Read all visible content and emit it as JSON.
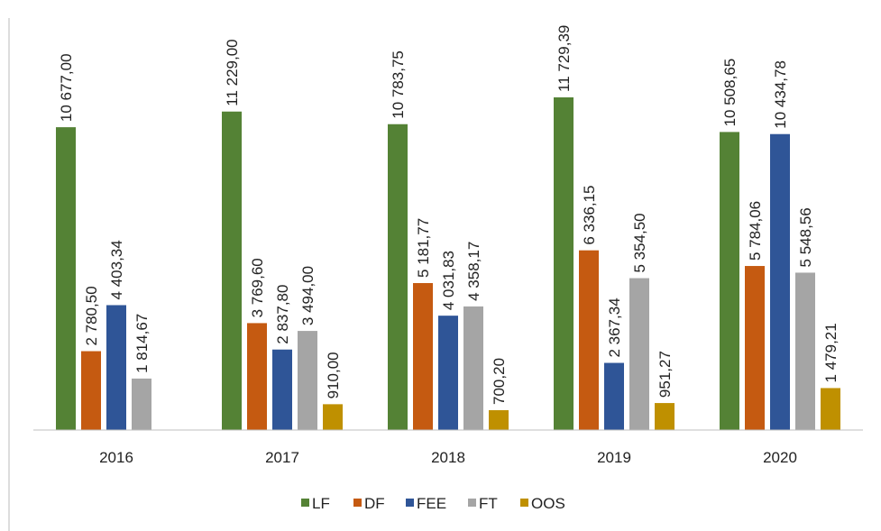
{
  "chart_data": {
    "type": "bar",
    "categories": [
      "2016",
      "2017",
      "2018",
      "2019",
      "2020"
    ],
    "series": [
      {
        "name": "LF",
        "color": "#548235",
        "values": [
          10677.0,
          11229.0,
          10783.75,
          11729.39,
          10508.65
        ],
        "value_labels": [
          "10 677,00",
          "11 229,00",
          "10 783,75",
          "11 729,39",
          "10 508,65"
        ]
      },
      {
        "name": "DF",
        "color": "#c55a11",
        "values": [
          2780.5,
          3769.6,
          5181.77,
          6336.15,
          5784.06
        ],
        "value_labels": [
          "2 780,50",
          "3 769,60",
          "5 181,77",
          "6 336,15",
          "5 784,06"
        ]
      },
      {
        "name": "FEE",
        "color": "#2f5597",
        "values": [
          4403.34,
          2837.8,
          4031.83,
          2367.34,
          10434.78
        ],
        "value_labels": [
          "4 403,34",
          "2 837,80",
          "4 031,83",
          "2 367,34",
          "10 434,78"
        ]
      },
      {
        "name": "FT",
        "color": "#a5a5a5",
        "values": [
          1814.67,
          3494.0,
          4358.17,
          5354.5,
          5548.56
        ],
        "value_labels": [
          "1 814,67",
          "3 494,00",
          "4 358,17",
          "5 354,50",
          "5 548,56"
        ]
      },
      {
        "name": "OOS",
        "color": "#bf9000",
        "values": [
          null,
          910.0,
          700.2,
          951.27,
          1479.21
        ],
        "value_labels": [
          null,
          "910,00",
          "700,20",
          "951,27",
          "1 479,21"
        ]
      }
    ],
    "legend": "bottom"
  }
}
